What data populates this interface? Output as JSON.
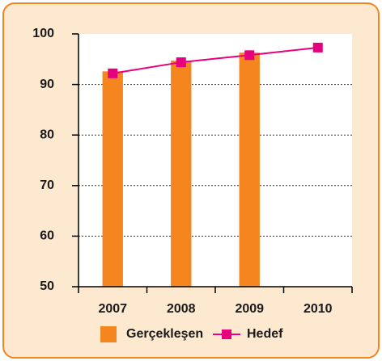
{
  "chart_data": {
    "type": "bar",
    "categories": [
      "2007",
      "2008",
      "2009",
      "2010"
    ],
    "series": [
      {
        "name": "Gerçekleşen",
        "type": "bar",
        "color": "#f5851f",
        "values": [
          92.6,
          94.7,
          96.3,
          null
        ]
      },
      {
        "name": "Hedef",
        "type": "line",
        "color": "#e6007e",
        "values": [
          92.2,
          94.4,
          95.8,
          97.3
        ]
      }
    ],
    "ylim": [
      50,
      100
    ],
    "yticks": [
      50,
      60,
      70,
      80,
      90,
      100
    ],
    "grid": true,
    "legend": "bottom"
  }
}
